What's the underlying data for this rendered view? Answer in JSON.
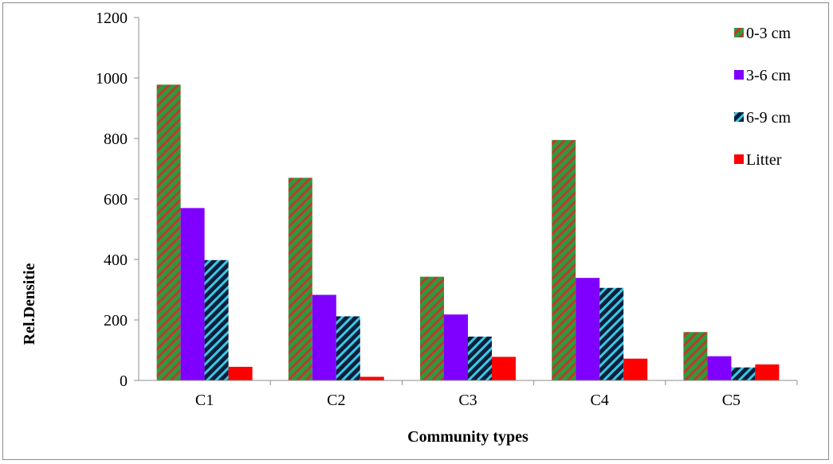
{
  "chart_data": {
    "type": "bar",
    "title": "",
    "xlabel": "Community types",
    "ylabel": "Rel.Densitie",
    "categories": [
      "C1",
      "C2",
      "C3",
      "C4",
      "C5"
    ],
    "ylim": [
      0,
      1200
    ],
    "yticks": [
      "0",
      "200",
      "400",
      "600",
      "800",
      "1000",
      "1200"
    ],
    "grid": false,
    "legend_position": "top-right",
    "series": [
      {
        "name": "0-3 cm",
        "values": [
          978,
          670,
          343,
          795,
          160
        ],
        "color": "#2e9a3e",
        "pattern_color": "#c0392b",
        "pattern": "diagonal-stripes"
      },
      {
        "name": "3-6 cm",
        "values": [
          570,
          283,
          218,
          339,
          80
        ],
        "color": "#7f00ff",
        "pattern": "solid"
      },
      {
        "name": "6-9 cm",
        "values": [
          398,
          212,
          145,
          306,
          43
        ],
        "color": "#0b1f3a",
        "pattern_color": "#3cc8e6",
        "pattern": "diagonal-stripes"
      },
      {
        "name": "Litter",
        "values": [
          45,
          12,
          78,
          72,
          53
        ],
        "color": "#ff0000",
        "pattern": "solid"
      }
    ]
  }
}
